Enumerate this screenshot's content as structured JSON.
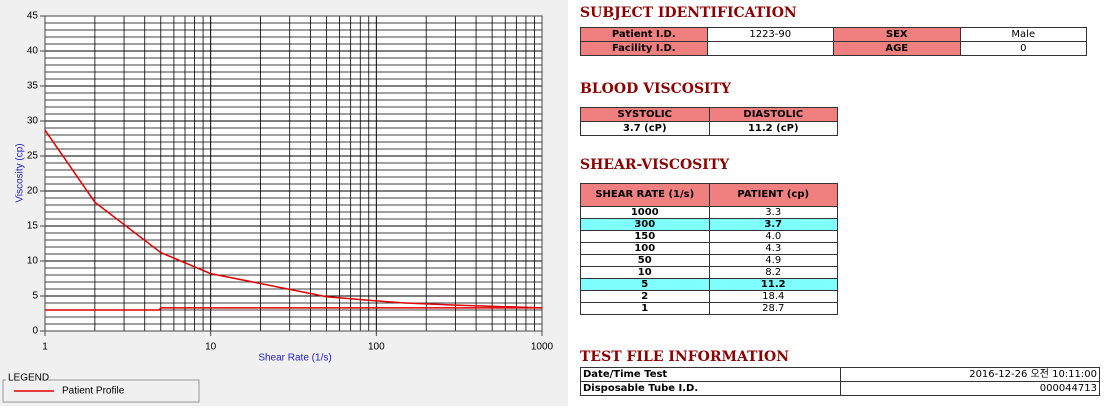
{
  "chart_data": {
    "type": "line",
    "x_label": "Shear Rate (1/s)",
    "y_label": "Viscosity (cp)",
    "legend_title": "LEGEND",
    "xlog": true,
    "grid": true,
    "minor_grid": true,
    "xlim": [
      1,
      1000
    ],
    "xticks": [
      1,
      10,
      100,
      1000
    ],
    "ylim": [
      0,
      45
    ],
    "yticks": [
      0,
      5,
      10,
      15,
      20,
      25,
      30,
      35,
      40,
      45
    ],
    "series": [
      {
        "name": "Patient Profile",
        "color": "#e00000",
        "x": [
          1,
          2,
          5,
          10,
          50,
          100,
          150,
          300,
          1000
        ],
        "values": [
          28.7,
          18.4,
          11.2,
          8.2,
          4.9,
          4.3,
          4.0,
          3.7,
          3.3
        ]
      },
      {
        "color": "#e00000",
        "x": [
          1,
          4.9,
          5,
          1000
        ],
        "values": [
          3.0,
          3.0,
          3.3,
          3.3
        ]
      }
    ]
  },
  "subject": {
    "title": "SUBJECT IDENTIFICATION",
    "rows": [
      [
        "Patient I.D.",
        "1223-90",
        "SEX",
        "Male"
      ],
      [
        "Facility I.D.",
        "",
        "AGE",
        "0"
      ]
    ]
  },
  "blood": {
    "title": "BLOOD VISCOSITY",
    "header": [
      "SYSTOLIC",
      "DIASTOLIC"
    ],
    "row": [
      "3.7 (cP)",
      "11.2 (cP)"
    ]
  },
  "shear": {
    "title": "SHEAR-VISCOSITY",
    "header": [
      "SHEAR RATE (1/s)",
      "PATIENT (cp)"
    ],
    "highlighted_rows": [
      1,
      6
    ],
    "rows": [
      [
        "1000",
        "3.3"
      ],
      [
        "300",
        "3.7"
      ],
      [
        "150",
        "4.0"
      ],
      [
        "100",
        "4.3"
      ],
      [
        "50",
        "4.9"
      ],
      [
        "10",
        "8.2"
      ],
      [
        "5",
        "11.2"
      ],
      [
        "2",
        "18.4"
      ],
      [
        "1",
        "28.7"
      ]
    ]
  },
  "testfile": {
    "title": "TEST FILE INFORMATION",
    "rows": [
      [
        "Date/Time Test",
        "2016-12-26  오전 10:11:00"
      ],
      [
        "Disposable Tube I.D.",
        "000044713"
      ]
    ]
  }
}
